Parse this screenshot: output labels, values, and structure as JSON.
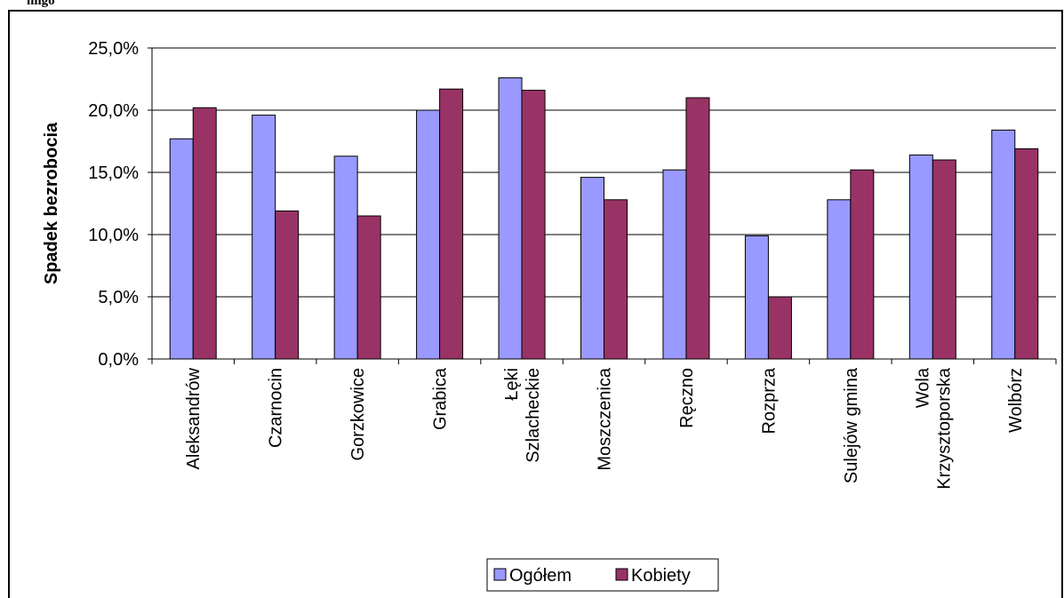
{
  "fragment_text": "ńligo",
  "chart_data": {
    "type": "bar",
    "title": "",
    "xlabel": "",
    "ylabel": "Spadek bezrobocia",
    "ylim": [
      0,
      25
    ],
    "yticks": [
      "0,0%",
      "5,0%",
      "10,0%",
      "15,0%",
      "20,0%",
      "25,0%"
    ],
    "grid": true,
    "legend_position": "bottom",
    "categories": [
      [
        "Aleksandrów"
      ],
      [
        "Czarnocin"
      ],
      [
        "Gorzkowice"
      ],
      [
        "Grabica"
      ],
      [
        "Łęki",
        "Szlacheckie"
      ],
      [
        "Moszczenica"
      ],
      [
        "Ręczno"
      ],
      [
        "Rozprza"
      ],
      [
        "Sulejów gmina"
      ],
      [
        "Wola",
        "Krzysztoporska"
      ],
      [
        "Wolbórz"
      ]
    ],
    "series": [
      {
        "name": "Ogółem",
        "color": "#9999ff",
        "values": [
          17.7,
          19.6,
          16.3,
          20.0,
          22.6,
          14.6,
          15.2,
          9.9,
          12.8,
          16.4,
          18.4
        ]
      },
      {
        "name": "Kobiety",
        "color": "#993366",
        "values": [
          20.2,
          11.9,
          11.5,
          21.7,
          21.6,
          12.8,
          21.0,
          5.0,
          15.2,
          16.0,
          16.9
        ]
      }
    ]
  }
}
